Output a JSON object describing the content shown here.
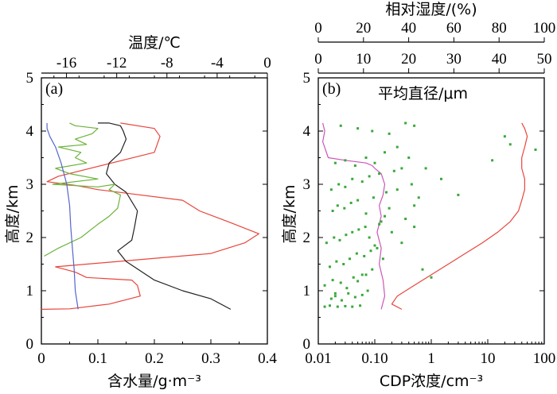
{
  "chart_data": [
    {
      "panel_label": "(a)",
      "type": "line",
      "xlabel_bottom": "含水量/g·m⁻³",
      "xlabel_top": "温度/℃",
      "ylabel": "高度/km",
      "xlim_bottom": [
        0,
        0.4
      ],
      "xlim_top": [
        -18,
        0
      ],
      "ylim": [
        0,
        5
      ],
      "xticks_bottom": [
        "0",
        "0.1",
        "0.2",
        "0.3",
        "0.4"
      ],
      "xticks_top": [
        "-16",
        "-12",
        "-8",
        "-4",
        "0"
      ],
      "yticks": [
        "0",
        "1",
        "2",
        "3",
        "4",
        "5"
      ],
      "series": [
        {
          "color": "#e8463c",
          "axis": "bottom",
          "x": [
            0.0,
            0.05,
            0.12,
            0.175,
            0.17,
            0.16,
            0.08,
            0.06,
            0.025,
            0.3,
            0.36,
            0.385,
            0.33,
            0.28,
            0.25,
            0.1,
            0.06,
            0.01,
            0.03,
            0.2,
            0.21,
            0.2,
            0.14
          ],
          "y": [
            0.65,
            0.66,
            0.75,
            0.9,
            1.1,
            1.2,
            1.25,
            1.35,
            1.45,
            1.7,
            1.9,
            2.07,
            2.3,
            2.5,
            2.7,
            2.9,
            2.98,
            3.05,
            3.15,
            3.6,
            3.9,
            4.05,
            4.15
          ]
        },
        {
          "color": "#222222",
          "axis": "bottom",
          "x": [
            0.335,
            0.3,
            0.25,
            0.2,
            0.15,
            0.135,
            0.16,
            0.165,
            0.17,
            0.15,
            0.13,
            0.115,
            0.12,
            0.14,
            0.15,
            0.145,
            0.14,
            0.12,
            0.1
          ],
          "y": [
            0.65,
            0.85,
            1.0,
            1.2,
            1.55,
            1.75,
            1.95,
            2.2,
            2.5,
            2.85,
            3.0,
            3.2,
            3.4,
            3.6,
            3.85,
            4.0,
            4.1,
            4.15,
            4.15
          ]
        },
        {
          "color": "#6bb33a",
          "axis": "bottom",
          "x": [
            0.005,
            0.03,
            0.07,
            0.1,
            0.12,
            0.135,
            0.14,
            0.12,
            0.13,
            0.1,
            0.02,
            0.1,
            0.05,
            0.025,
            0.08,
            0.06,
            0.07,
            0.03,
            0.08,
            0.06,
            0.09,
            0.1,
            0.06,
            0.05
          ],
          "y": [
            1.65,
            1.8,
            2.0,
            2.25,
            2.4,
            2.55,
            2.8,
            2.9,
            3.0,
            2.95,
            3.0,
            3.1,
            3.2,
            3.3,
            3.4,
            3.5,
            3.6,
            3.7,
            3.75,
            3.85,
            3.95,
            4.05,
            4.1,
            4.15
          ]
        },
        {
          "color": "#5566cc",
          "axis": "bottom",
          "x": [
            0.065,
            0.06,
            0.058,
            0.055,
            0.052,
            0.05,
            0.045,
            0.04,
            0.035,
            0.025,
            0.015,
            0.01,
            0.01
          ],
          "y": [
            0.65,
            1.0,
            1.4,
            1.8,
            2.2,
            2.6,
            3.0,
            3.2,
            3.4,
            3.7,
            3.9,
            4.05,
            4.15
          ]
        }
      ]
    },
    {
      "panel_label": "(b)",
      "type": "line",
      "xlabel_bottom": "CDP浓度/cm⁻³",
      "xlabel_top": "相对湿度/(%)",
      "xlabel_mid": "平均直径/μm",
      "ylabel": "高度/km",
      "xscale_bottom": "log",
      "xlim_bottom": [
        0.01,
        100
      ],
      "xlim_top": [
        0,
        100
      ],
      "xlim_mid": [
        0,
        50
      ],
      "ylim": [
        0,
        5
      ],
      "xticks_bottom": [
        "0.01",
        "0.10",
        "1",
        "10",
        "100"
      ],
      "xticks_top": [
        "0",
        "20",
        "40",
        "60",
        "80",
        "100"
      ],
      "xticks_mid": [
        "0",
        "10",
        "20",
        "30",
        "40",
        "50"
      ],
      "yticks": [
        "0",
        "1",
        "2",
        "3",
        "4",
        "5"
      ],
      "series": [
        {
          "color": "#e8463c",
          "axis": "bottom",
          "x": [
            0.3,
            0.2,
            0.25,
            0.5,
            1.0,
            2.0,
            4.0,
            8.0,
            15.0,
            25.0,
            35.0,
            40.0,
            45.0,
            45.0,
            40.0,
            40.0,
            45.0,
            50.0,
            45.0,
            40.0
          ],
          "y": [
            0.65,
            0.75,
            0.9,
            1.1,
            1.3,
            1.5,
            1.7,
            1.9,
            2.1,
            2.3,
            2.5,
            2.7,
            2.9,
            3.1,
            3.3,
            3.5,
            3.7,
            3.9,
            4.05,
            4.15
          ]
        },
        {
          "color": "#cc55bb",
          "axis": "bottom",
          "x": [
            0.13,
            0.15,
            0.14,
            0.12,
            0.13,
            0.11,
            0.13,
            0.12,
            0.14,
            0.15,
            0.13,
            0.1,
            0.09,
            0.07,
            0.03,
            0.015,
            0.012,
            0.013,
            0.012
          ],
          "y": [
            0.65,
            0.9,
            1.2,
            1.5,
            1.8,
            2.1,
            2.4,
            2.6,
            2.8,
            3.0,
            3.2,
            3.3,
            3.35,
            3.4,
            3.45,
            3.5,
            3.8,
            4.0,
            4.15
          ]
        },
        {
          "color": "#3aa83a",
          "axis": "bottom",
          "style": "points",
          "x": [
            0.013,
            0.016,
            0.022,
            0.03,
            0.04,
            0.055,
            0.017,
            0.02,
            0.026,
            0.034,
            0.045,
            0.06,
            0.075,
            0.013,
            0.018,
            0.025,
            0.032,
            0.042,
            0.05,
            0.07,
            0.09,
            0.016,
            0.021,
            0.028,
            0.036,
            0.048,
            0.065,
            0.085,
            0.11,
            0.014,
            0.019,
            0.024,
            0.031,
            0.04,
            0.052,
            0.068,
            0.08,
            0.1,
            0.12,
            0.15,
            0.2,
            0.018,
            0.022,
            0.029,
            0.038,
            0.05,
            0.07,
            0.095,
            0.13,
            0.18,
            0.25,
            0.35,
            0.5,
            0.7,
            1.0,
            0.017,
            0.023,
            0.03,
            0.04,
            0.06,
            0.08,
            0.12,
            0.16,
            0.22,
            0.3,
            0.45,
            0.6,
            1.5,
            3.0,
            0.02,
            0.03,
            0.045,
            0.07,
            0.1,
            0.15,
            0.25,
            0.4,
            0.8,
            12.0,
            20.0,
            25.0,
            70.0,
            0.025,
            0.05,
            0.09,
            0.18,
            0.35,
            0.5,
            0.02,
            0.06,
            0.14,
            0.3,
            0.5
          ],
          "y": [
            0.7,
            0.72,
            0.7,
            0.71,
            0.7,
            0.72,
            0.85,
            0.9,
            0.82,
            0.95,
            0.88,
            0.92,
            1.0,
            1.1,
            1.2,
            1.15,
            1.05,
            1.25,
            1.18,
            1.3,
            1.4,
            1.45,
            1.55,
            1.5,
            1.6,
            1.7,
            1.65,
            1.75,
            1.8,
            1.9,
            2.0,
            1.95,
            2.05,
            2.1,
            2.15,
            2.2,
            2.0,
            1.85,
            2.25,
            2.4,
            2.1,
            2.5,
            2.6,
            2.55,
            2.65,
            2.7,
            2.45,
            2.75,
            2.3,
            2.55,
            2.9,
            2.35,
            2.6,
            1.4,
            1.25,
            2.9,
            3.0,
            2.95,
            3.1,
            3.05,
            3.15,
            3.2,
            2.85,
            3.25,
            3.3,
            3.0,
            2.75,
            3.1,
            2.8,
            3.4,
            3.45,
            3.35,
            3.5,
            3.4,
            3.6,
            3.7,
            3.5,
            3.3,
            3.45,
            3.9,
            3.75,
            3.65,
            4.1,
            4.05,
            4.0,
            3.95,
            4.15,
            4.1,
            0.95,
            1.3,
            1.6,
            1.9,
            2.2
          ]
        }
      ]
    }
  ]
}
